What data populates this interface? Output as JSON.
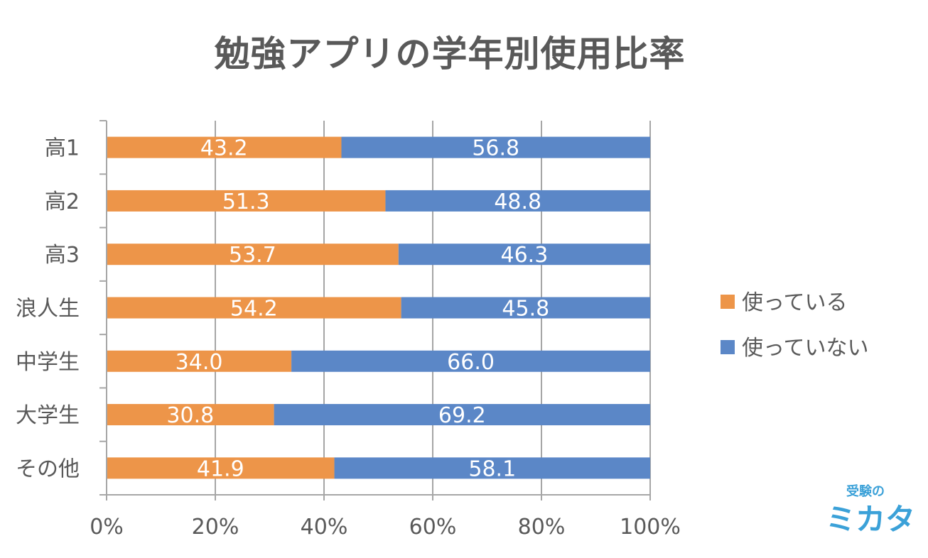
{
  "chart_data": {
    "type": "bar",
    "orientation": "horizontal",
    "stacked": true,
    "title": "勉強アプリの学年別使用比率",
    "categories": [
      "高1",
      "高2",
      "高3",
      "浪人生",
      "中学生",
      "大学生",
      "その他"
    ],
    "series": [
      {
        "name": "使っている",
        "color": "#ED9549",
        "values": [
          43.2,
          51.3,
          53.7,
          54.2,
          34.0,
          30.8,
          41.9
        ],
        "labels": [
          "43.2",
          "51.3",
          "53.7",
          "54.2",
          "34.0",
          "30.8",
          "41.9"
        ]
      },
      {
        "name": "使っていない",
        "color": "#5B87C7",
        "values": [
          56.8,
          48.8,
          46.3,
          45.8,
          66.0,
          69.2,
          58.1
        ],
        "labels": [
          "56.8",
          "48.8",
          "46.3",
          "45.8",
          "66.0",
          "69.2",
          "58.1"
        ]
      }
    ],
    "xlim": [
      0,
      100
    ],
    "xticks": [
      "0%",
      "20%",
      "40%",
      "60%",
      "80%",
      "100%"
    ],
    "grid": true,
    "legend_position": "right"
  },
  "logo": {
    "top_text": "受験の",
    "main_text": "ミカタ",
    "color": "#3BA1D8"
  }
}
